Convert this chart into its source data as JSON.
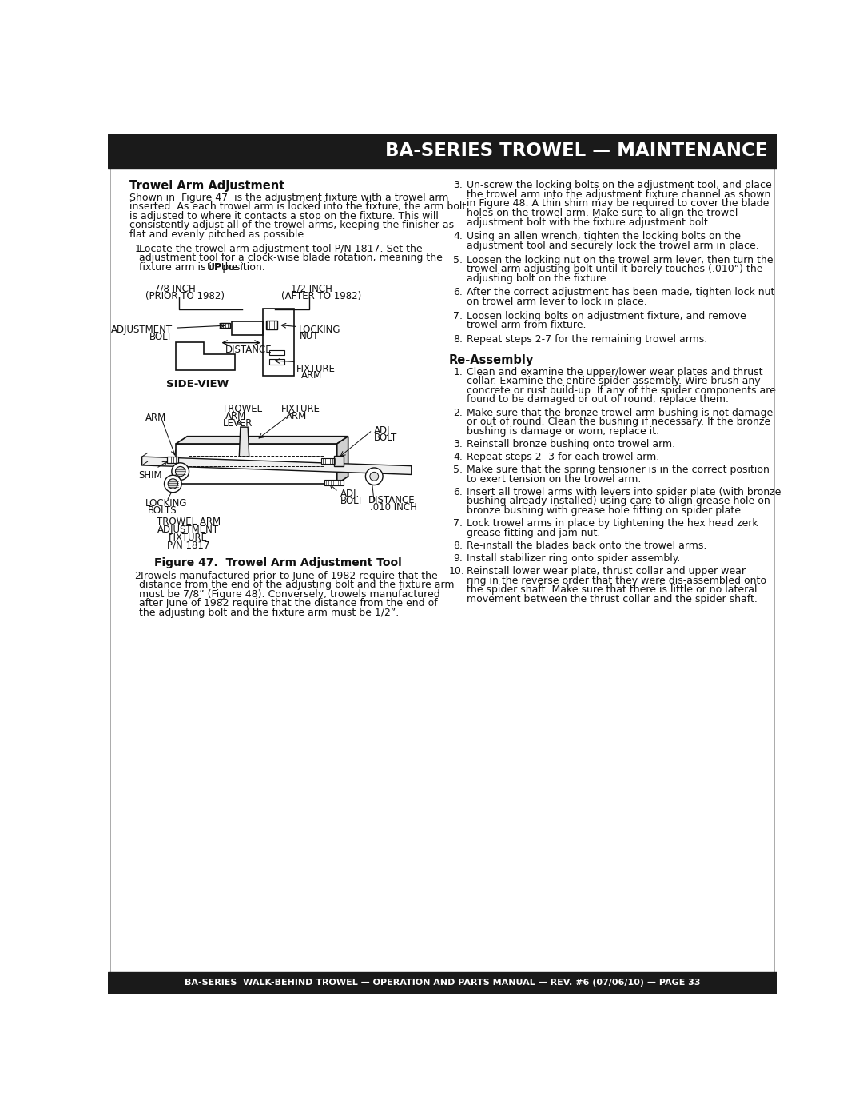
{
  "header_bg": "#1a1a1a",
  "header_text": "BA-SERIES TROWEL — MAINTENANCE",
  "header_text_color": "#ffffff",
  "footer_bg": "#1a1a1a",
  "footer_text": "BA-SERIES  WALK-BEHIND TROWEL — OPERATION AND PARTS MANUAL — REV. #6 (07/06/10) — PAGE 33",
  "footer_text_color": "#ffffff",
  "bg_color": "#ffffff",
  "body_text_color": "#111111",
  "section1_title": "Trowel Arm Adjustment",
  "section1_intro_lines": [
    "Shown in  Figure 47  is the adjustment fixture with a trowel arm",
    "inserted. As each trowel arm is locked into the fixture, the arm bolt",
    "is adjusted to where it contacts a stop on the fixture. This will",
    "consistently adjust all of the trowel arms, keeping the finisher as",
    "flat and evenly pitched as possible."
  ],
  "item1_lines": [
    "Locate the trowel arm adjustment tool P/N 1817. Set the",
    "adjustment tool for a clock-wise blade rotation, meaning the",
    "fixture arm is in the “UP” position."
  ],
  "item1_bold_word": "UP",
  "item2_lines": [
    "Trowels manufactured prior to June of 1982 require that the",
    "distance from the end of the adjusting bolt and the fixture arm",
    "must be 7/8” (Figure 48). Conversely, trowels manufactured",
    "after June of 1982 require that the distance from the end of",
    "the adjusting bolt and the fixture arm must be 1/2”."
  ],
  "right_items": [
    {
      "num": "3.",
      "lines": [
        "Un-screw the locking bolts on the adjustment tool, and place",
        "the trowel arm into the adjustment fixture channel as shown",
        "in Figure 48. A thin shim may be required to cover the blade",
        "holes on the trowel arm. Make sure to align the trowel",
        "adjustment bolt with the fixture adjustment bolt."
      ],
      "italic_phrase": "thin shim"
    },
    {
      "num": "4.",
      "lines": [
        "Using an allen wrench, tighten the locking bolts on the",
        "adjustment tool and securely lock the trowel arm in place."
      ],
      "italic_phrase": ""
    },
    {
      "num": "5.",
      "lines": [
        "Loosen the locking nut on the trowel arm lever, then turn the",
        "trowel arm adjusting bolt until it barely touches (.010”) the",
        "adjusting bolt on the fixture."
      ],
      "italic_phrase": ""
    },
    {
      "num": "6.",
      "lines": [
        "After the correct adjustment has been made, tighten lock nut",
        "on trowel arm lever to lock in place."
      ],
      "italic_phrase": ""
    },
    {
      "num": "7.",
      "lines": [
        "Loosen locking bolts on adjustment fixture, and remove",
        "trowel arm from fixture."
      ],
      "italic_phrase": ""
    },
    {
      "num": "8.",
      "lines": [
        "Repeat steps 2-7 for the remaining trowel arms."
      ],
      "italic_phrase": ""
    }
  ],
  "section2_title": "Re-Assembly",
  "section2_items": [
    {
      "num": "1.",
      "lines": [
        "Clean and examine the upper/lower wear plates and thrust",
        "collar. Examine the entire spider assembly. Wire brush any",
        "concrete or rust build-up. If any of the spider components are",
        "found to be damaged or out of round, replace them."
      ]
    },
    {
      "num": "2.",
      "lines": [
        "Make sure that the bronze trowel arm bushing is not damage",
        "or out of round. Clean the bushing if necessary. If the bronze",
        "bushing is damage or worn, replace it."
      ]
    },
    {
      "num": "3.",
      "lines": [
        "Reinstall bronze bushing onto trowel arm."
      ]
    },
    {
      "num": "4.",
      "lines": [
        "Repeat steps 2 -3 for each trowel arm."
      ]
    },
    {
      "num": "5.",
      "lines": [
        "Make sure that the spring tensioner is in the correct position",
        "to exert tension on the trowel arm."
      ]
    },
    {
      "num": "6.",
      "lines": [
        "Insert all trowel arms with levers into spider plate (with bronze",
        "bushing already installed) using care to align grease hole on",
        "bronze bushing with grease hole fitting on spider plate."
      ]
    },
    {
      "num": "7.",
      "lines": [
        "Lock trowel arms in place by tightening the hex head zerk",
        "grease fitting and jam nut."
      ]
    },
    {
      "num": "8.",
      "lines": [
        "Re-install the blades back onto the trowel arms."
      ]
    },
    {
      "num": "9.",
      "lines": [
        "Install stabilizer ring onto spider assembly."
      ]
    },
    {
      "num": "10.",
      "lines": [
        "Reinstall lower wear plate, thrust collar and upper wear",
        "ring in the reverse order that they were dis-assembled onto",
        "the spider shaft. Make sure that there is little or no lateral",
        "movement between the thrust collar and the spider shaft."
      ],
      "bold_phrases": [
        "lower wear plate",
        "thrust collar",
        "upper wear ring",
        "reverse order"
      ]
    }
  ],
  "figure_caption": "Figure 47.  Trowel Arm Adjustment Tool"
}
